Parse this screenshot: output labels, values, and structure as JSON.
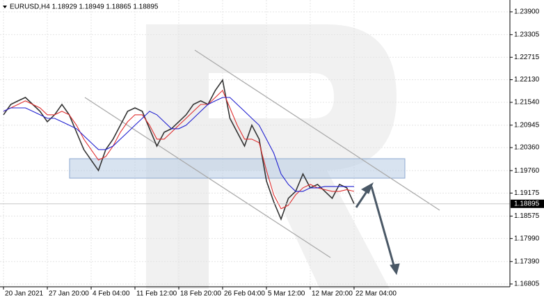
{
  "chart_data": {
    "type": "line",
    "title": "EURUSD,H4  1.18929 1.18949 1.18865 1.18895",
    "x": [
      0,
      5,
      10,
      15,
      20,
      25,
      30,
      35,
      40,
      45,
      50,
      55,
      60,
      65,
      70,
      75,
      80,
      85,
      90,
      95,
      100,
      105,
      110,
      115,
      120,
      125,
      130,
      135,
      140,
      145,
      150,
      155,
      160,
      165,
      170,
      175,
      180,
      185,
      190,
      195,
      200,
      205,
      210,
      215,
      220,
      225,
      230,
      235,
      240
    ],
    "series": [
      {
        "color": "#333333",
        "values": [
          1.21215,
          1.21487,
          1.21578,
          1.21668,
          1.21487,
          1.21306,
          1.21034,
          1.21215,
          1.21487,
          1.21215,
          1.20761,
          1.20308,
          1.20036,
          1.19764,
          1.20308,
          1.2058,
          1.20943,
          1.21306,
          1.21396,
          1.21306,
          1.20852,
          1.20399,
          1.20761,
          1.20852,
          1.21034,
          1.21215,
          1.21487,
          1.21578,
          1.21487,
          1.2185,
          1.22122,
          1.21124,
          1.20761,
          1.20399,
          1.20943,
          1.2058,
          1.19492,
          1.18948,
          1.18494,
          1.19038,
          1.1922,
          1.19673,
          1.1931,
          1.19401,
          1.1922,
          1.19038,
          1.19401,
          1.1931,
          1.18895
        ]
      },
      {
        "color": "#e03030",
        "values": [
          1.21306,
          1.21396,
          1.21487,
          1.21578,
          1.21487,
          1.21396,
          1.21215,
          1.21215,
          1.21306,
          1.21215,
          1.20943,
          1.2058,
          1.20308,
          1.20036,
          1.20127,
          1.20399,
          1.20761,
          1.21034,
          1.21215,
          1.21215,
          1.20943,
          1.2058,
          1.2058,
          1.20761,
          1.20943,
          1.21124,
          1.21306,
          1.21487,
          1.21487,
          1.21668,
          1.2185,
          1.21396,
          1.20943,
          1.2058,
          1.2058,
          1.20489,
          1.19764,
          1.19129,
          1.18766,
          1.18857,
          1.19129,
          1.1931,
          1.19401,
          1.1931,
          1.19264,
          1.1922,
          1.1922,
          1.19264,
          1.1922
        ]
      },
      {
        "color": "#2020d0",
        "values": [
          1.21306,
          1.21396,
          1.21396,
          1.21396,
          1.21306,
          1.21215,
          1.21124,
          1.21124,
          1.21034,
          1.20943,
          1.20852,
          1.2067,
          1.20489,
          1.20308,
          1.20308,
          1.20399,
          1.2058,
          1.20761,
          1.20943,
          1.21124,
          1.21306,
          1.21215,
          1.21034,
          1.20852,
          1.20852,
          1.20943,
          1.21124,
          1.21306,
          1.21487,
          1.21578,
          1.21668,
          1.21668,
          1.21487,
          1.21306,
          1.21124,
          1.20943,
          1.2058,
          1.20217,
          1.19673,
          1.19401,
          1.1922,
          1.1922,
          1.1931,
          1.1931,
          1.19346,
          1.19346,
          1.19346,
          1.19346,
          1.19346
        ]
      }
    ],
    "ylim": [
      1.16732,
      1.24208
    ],
    "yticks": [
      {
        "value": 1.239,
        "label": "1.23900"
      },
      1.23305,
      {
        "value": 1.22715,
        "label": "1.22715"
      },
      {
        "value": 1.2213,
        "label": "1.22130"
      },
      {
        "value": 1.2154,
        "label": "1.21540"
      },
      1.20945,
      {
        "value": 1.2036,
        "label": "1.20360"
      },
      {
        "value": 1.1976,
        "label": "1.19760"
      },
      1.19175,
      1.18575,
      {
        "value": 1.1799,
        "label": "1.17990"
      },
      {
        "value": 1.1739,
        "label": "1.17390"
      },
      1.16805
    ],
    "xlim": [
      -2.4,
      346.7
    ],
    "xticks": [
      {
        "value": 0,
        "label": "20 Jan 2021"
      },
      {
        "value": 30,
        "label": "27 Jan 20:00"
      },
      {
        "value": 60,
        "label": "4 Feb 04:00"
      },
      {
        "value": 90,
        "label": "11 Feb 12:00"
      },
      {
        "value": 120,
        "label": "18 Feb 20:00"
      },
      {
        "value": 150,
        "label": "26 Feb 04:00"
      },
      {
        "value": 180,
        "label": "5 Mar 12:00"
      },
      {
        "value": 210,
        "label": "12 Mar 20:00"
      },
      {
        "value": 240,
        "label": "22 Mar 04:00"
      }
    ],
    "last_price": 1.18895,
    "grid": true
  }
}
